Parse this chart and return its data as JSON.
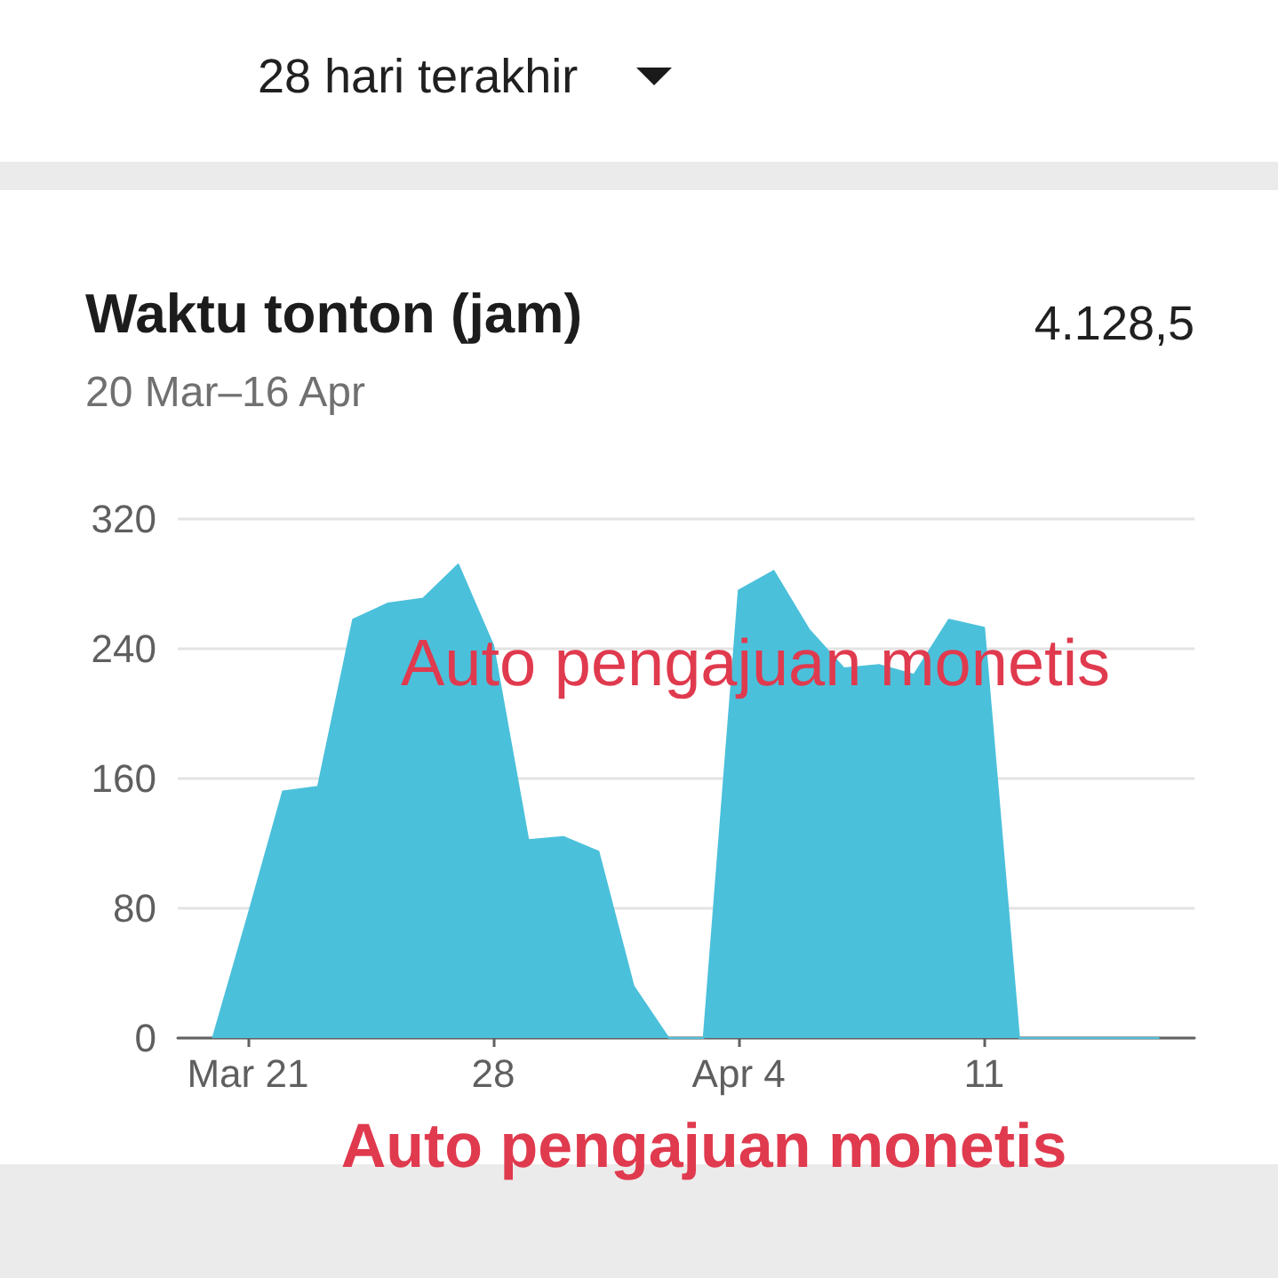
{
  "chart_data": {
    "type": "area",
    "title": "Waktu tonton (jam)",
    "subtitle": "20 Mar–16 Apr",
    "annotations": [
      "28 hari terakhir",
      "4.128,5",
      "Auto pengajuan monetis",
      "Auto pengajuan monetis"
    ],
    "x": [
      "--03-20",
      "--03-21",
      "--03-22",
      "--03-23",
      "--03-24",
      "--03-25",
      "--03-26",
      "--03-27",
      "--03-28",
      "--03-29",
      "--03-30",
      "--03-31",
      "--04-01",
      "--04-02",
      "--04-03",
      "--04-04",
      "--04-05",
      "--04-06",
      "--04-07",
      "--04-08",
      "--04-09",
      "--04-10",
      "--04-11",
      "--04-12",
      "--04-13",
      "--04-14",
      "--04-15",
      "--04-16"
    ],
    "values": [
      0,
      75,
      152,
      155,
      258,
      268,
      271,
      292,
      242,
      122,
      124,
      115,
      32,
      0,
      0,
      276,
      288,
      252,
      228,
      230,
      224,
      258,
      253,
      0,
      0,
      0,
      0,
      0
    ],
    "color": "#4bc0db",
    "xlim": [
      "--03-19",
      "--04-17"
    ],
    "xticks": [
      {
        "value": "--03-21",
        "label": "Mar 21"
      },
      {
        "value": "--03-28",
        "label": "28"
      },
      {
        "value": "--04-04",
        "label": "Apr 4"
      },
      {
        "value": "--04-11",
        "label": "11"
      }
    ],
    "ylim": [
      0,
      320
    ],
    "yticks": [
      0,
      80,
      160,
      240,
      320
    ],
    "grid": "y"
  }
}
